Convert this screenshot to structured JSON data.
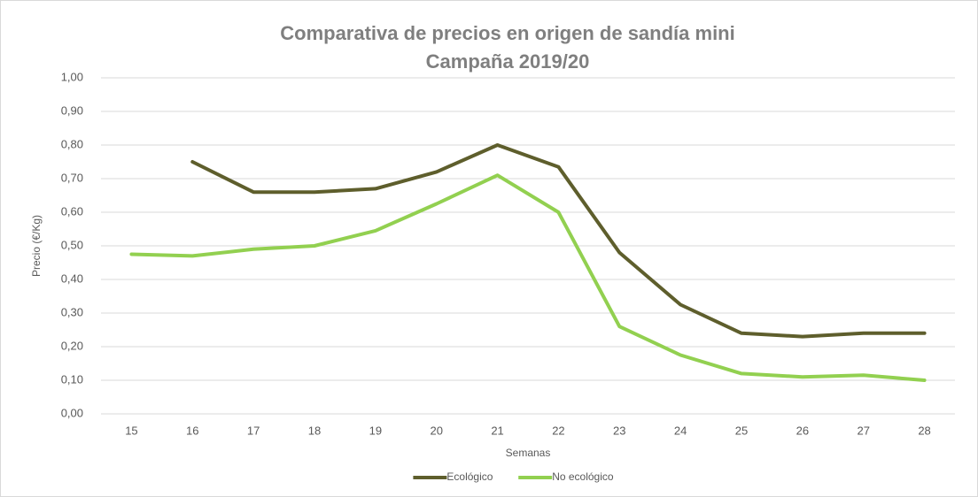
{
  "chart_data": {
    "type": "line",
    "title": "Comparativa de precios en origen de sandía mini",
    "subtitle": "Campaña 2019/20",
    "y_label": "Precio (€/Kg)",
    "x_label": "Semanas",
    "categories": [
      "15",
      "16",
      "17",
      "18",
      "19",
      "20",
      "21",
      "22",
      "23",
      "24",
      "25",
      "26",
      "27",
      "28"
    ],
    "series": [
      {
        "name": "Ecológico",
        "color": "#5e5e2c",
        "values": [
          null,
          0.75,
          0.66,
          0.66,
          0.67,
          0.72,
          0.8,
          0.735,
          0.48,
          0.325,
          0.24,
          0.23,
          0.24,
          0.24
        ]
      },
      {
        "name": "No ecológico",
        "color": "#92d050",
        "values": [
          0.475,
          0.47,
          0.49,
          0.5,
          0.545,
          0.625,
          0.71,
          0.6,
          0.26,
          0.175,
          0.12,
          0.11,
          0.115,
          0.1
        ]
      }
    ],
    "ylim": [
      0,
      1
    ],
    "yticks": [
      {
        "value": 0,
        "label": "0,00"
      },
      {
        "value": 0.1,
        "label": "0,10"
      },
      {
        "value": 0.2,
        "label": "0,20"
      },
      {
        "value": 0.3,
        "label": "0,30"
      },
      {
        "value": 0.4,
        "label": "0,40"
      },
      {
        "value": 0.5,
        "label": "0,50"
      },
      {
        "value": 0.6,
        "label": "0,60"
      },
      {
        "value": 0.7,
        "label": "0,70"
      },
      {
        "value": 0.8,
        "label": "0,80"
      },
      {
        "value": 0.9,
        "label": "0,90"
      },
      {
        "value": 1,
        "label": "1,00"
      }
    ],
    "grid": true,
    "legend": "bottom"
  }
}
